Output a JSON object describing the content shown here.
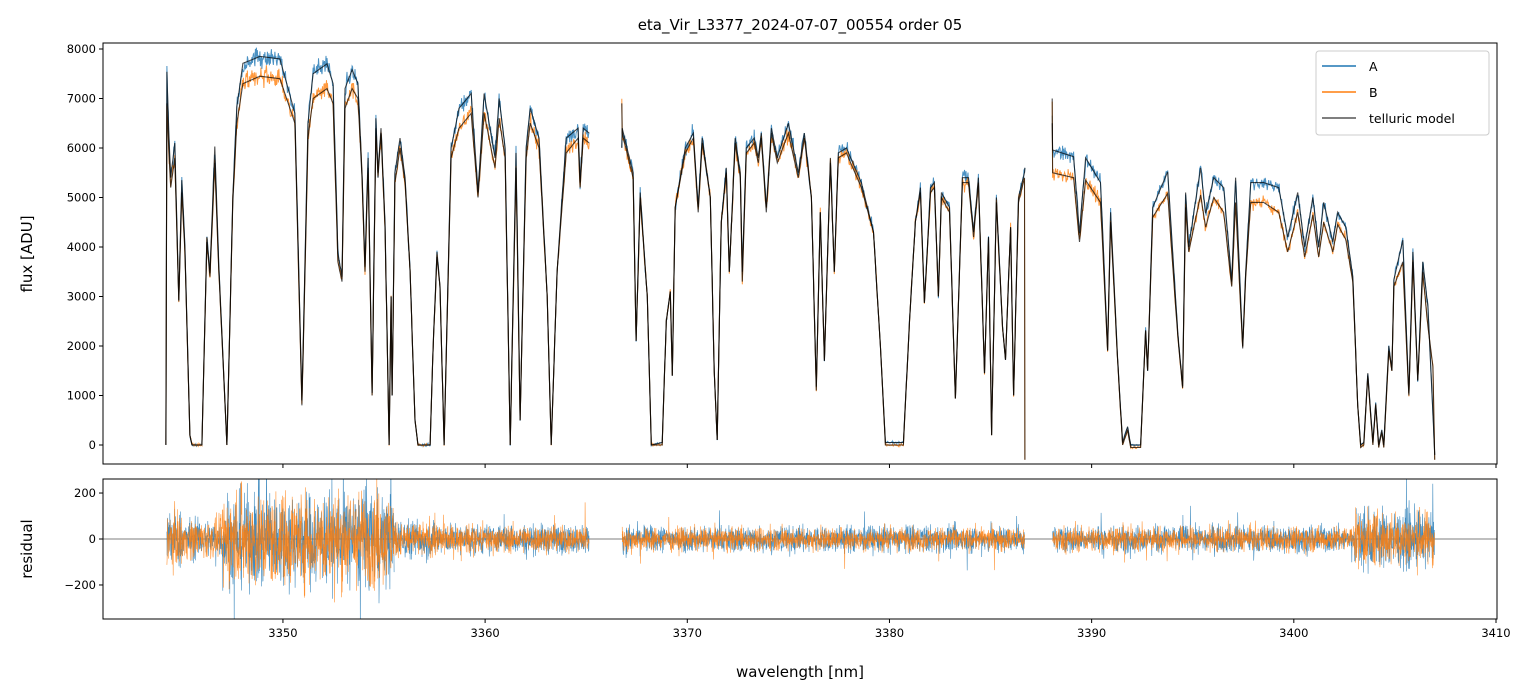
{
  "chart_data": [
    {
      "type": "line",
      "title": "eta_Vir_L3377_2024-07-07_00554  order 05",
      "xlabel": "",
      "ylabel": "flux [ADU]",
      "xlim": [
        3341.1,
        3410.05
      ],
      "ylim": [
        -384,
        8121
      ],
      "grid": false,
      "legend": "top-right",
      "x_ticks": [
        3350,
        3360,
        3370,
        3380,
        3390,
        3400,
        3410
      ],
      "y_ticks": [
        "0",
        "1000",
        "2000",
        "3000",
        "4000",
        "5000",
        "6000",
        "7000",
        "8000"
      ],
      "series": [
        {
          "name": "A",
          "color": "#1f77b4"
        },
        {
          "name": "B",
          "color": "#ff7f0e"
        },
        {
          "name": "telluric model",
          "color": "#555555"
        }
      ],
      "columns": [
        "wavelength_nm",
        "A",
        "B"
      ],
      "segments": [
        [
          [
            3344.21,
            0,
            0
          ],
          [
            3344.26,
            7540,
            6900
          ],
          [
            3344.35,
            6360,
            6000
          ],
          [
            3344.45,
            5400,
            5200
          ],
          [
            3344.65,
            6100,
            5800
          ],
          [
            3344.85,
            2930,
            2900
          ],
          [
            3345.0,
            5350,
            5100
          ],
          [
            3345.15,
            4000,
            3900
          ],
          [
            3345.4,
            200,
            200
          ],
          [
            3345.5,
            0,
            0
          ],
          [
            3345.99,
            0,
            0
          ],
          [
            3346.24,
            4200,
            4100
          ],
          [
            3346.39,
            3470,
            3400
          ],
          [
            3346.63,
            6030,
            5700
          ],
          [
            3346.83,
            3600,
            3500
          ],
          [
            3347.23,
            0,
            0
          ],
          [
            3347.52,
            5000,
            4900
          ],
          [
            3347.72,
            6830,
            6500
          ],
          [
            3348.02,
            7710,
            7300
          ],
          [
            3348.86,
            7850,
            7450
          ],
          [
            3349.85,
            7800,
            7400
          ],
          [
            3350.59,
            6700,
            6500
          ],
          [
            3350.94,
            900,
            800
          ],
          [
            3351.24,
            6500,
            6200
          ],
          [
            3351.49,
            7500,
            7000
          ],
          [
            3352.18,
            7700,
            7200
          ],
          [
            3352.48,
            7300,
            6900
          ],
          [
            3352.72,
            3870,
            3700
          ],
          [
            3352.92,
            3400,
            3300
          ],
          [
            3353.07,
            7200,
            6800
          ],
          [
            3353.42,
            7580,
            7200
          ],
          [
            3353.71,
            7300,
            7000
          ],
          [
            3353.91,
            5500,
            5400
          ],
          [
            3354.06,
            3600,
            3500
          ],
          [
            3354.21,
            5800,
            5600
          ],
          [
            3354.41,
            1050,
            1000
          ],
          [
            3354.6,
            6600,
            6400
          ],
          [
            3354.7,
            5500,
            5400
          ],
          [
            3354.85,
            6400,
            6300
          ],
          [
            3355.05,
            4500,
            4400
          ],
          [
            3355.25,
            0,
            0
          ],
          [
            3355.35,
            3000,
            3000
          ],
          [
            3355.4,
            1000,
            1000
          ],
          [
            3355.54,
            5500,
            5300
          ],
          [
            3355.79,
            6200,
            6000
          ],
          [
            3356.04,
            5400,
            5300
          ],
          [
            3356.29,
            3500,
            3500
          ],
          [
            3356.53,
            500,
            500
          ],
          [
            3356.68,
            0,
            0
          ],
          [
            3357.28,
            0,
            0
          ],
          [
            3357.43,
            2000,
            2000
          ],
          [
            3357.62,
            3900,
            3800
          ],
          [
            3357.77,
            3200,
            3200
          ],
          [
            3357.97,
            0,
            0
          ],
          [
            3358.32,
            6000,
            5800
          ],
          [
            3358.71,
            6800,
            6400
          ],
          [
            3359.31,
            7100,
            6700
          ],
          [
            3359.65,
            5100,
            5000
          ],
          [
            3359.95,
            7100,
            6700
          ],
          [
            3360.49,
            5800,
            5600
          ],
          [
            3360.69,
            7000,
            6600
          ],
          [
            3360.99,
            6000,
            5800
          ],
          [
            3361.24,
            0,
            0
          ],
          [
            3361.53,
            5900,
            5600
          ],
          [
            3361.73,
            500,
            500
          ],
          [
            3362.03,
            6000,
            5800
          ],
          [
            3362.23,
            6800,
            6500
          ],
          [
            3362.67,
            6200,
            6000
          ],
          [
            3363.07,
            3000,
            3000
          ],
          [
            3363.27,
            0,
            0
          ],
          [
            3363.56,
            3500,
            3500
          ],
          [
            3364.01,
            6200,
            5900
          ],
          [
            3364.6,
            6400,
            6200
          ],
          [
            3364.7,
            5300,
            5200
          ],
          [
            3364.85,
            6400,
            6200
          ],
          [
            3365.15,
            6300,
            6100
          ]
        ],
        [
          [
            3366.76,
            6000,
            6900
          ],
          [
            3366.78,
            6400,
            6300
          ],
          [
            3367.32,
            5500,
            5400
          ],
          [
            3367.47,
            2100,
            2100
          ],
          [
            3367.67,
            5100,
            5000
          ],
          [
            3368.02,
            3000,
            3000
          ],
          [
            3368.22,
            0,
            0
          ],
          [
            3368.76,
            50,
            0
          ],
          [
            3368.96,
            2500,
            2500
          ],
          [
            3369.16,
            3100,
            3100
          ],
          [
            3369.26,
            1400,
            1400
          ],
          [
            3369.4,
            4800,
            4800
          ],
          [
            3369.9,
            6000,
            5900
          ],
          [
            3370.3,
            6300,
            6200
          ],
          [
            3370.54,
            4800,
            4700
          ],
          [
            3370.74,
            6200,
            6100
          ],
          [
            3371.14,
            5000,
            5000
          ],
          [
            3371.33,
            1500,
            1500
          ],
          [
            3371.48,
            100,
            100
          ],
          [
            3371.68,
            4500,
            4500
          ],
          [
            3371.93,
            5600,
            5500
          ],
          [
            3372.08,
            3500,
            3500
          ],
          [
            3372.37,
            6200,
            6100
          ],
          [
            3372.62,
            5500,
            5400
          ],
          [
            3372.72,
            3500,
            3300
          ],
          [
            3372.92,
            6000,
            5900
          ],
          [
            3373.31,
            6200,
            6100
          ],
          [
            3373.51,
            5800,
            5700
          ],
          [
            3373.66,
            6300,
            6200
          ],
          [
            3373.91,
            4800,
            4700
          ],
          [
            3374.16,
            6400,
            6300
          ],
          [
            3374.45,
            5800,
            5700
          ],
          [
            3375.0,
            6500,
            6300
          ],
          [
            3375.49,
            5500,
            5400
          ],
          [
            3375.79,
            6300,
            6200
          ],
          [
            3376.14,
            5000,
            5000
          ],
          [
            3376.38,
            1180,
            1100
          ],
          [
            3376.58,
            4700,
            4700
          ],
          [
            3376.78,
            1700,
            1700
          ],
          [
            3377.08,
            5800,
            5700
          ],
          [
            3377.27,
            3500,
            3500
          ],
          [
            3377.47,
            5900,
            5800
          ],
          [
            3377.87,
            6000,
            5900
          ],
          [
            3378.61,
            5300,
            5200
          ],
          [
            3379.21,
            4300,
            4300
          ],
          [
            3379.55,
            2000,
            2000
          ],
          [
            3379.8,
            50,
            0
          ],
          [
            3380.69,
            50,
            0
          ],
          [
            3380.99,
            2500,
            2500
          ],
          [
            3381.28,
            4500,
            4500
          ],
          [
            3381.53,
            5200,
            5100
          ],
          [
            3381.73,
            2870,
            2870
          ],
          [
            3382.03,
            5200,
            5100
          ],
          [
            3382.22,
            5300,
            5200
          ],
          [
            3382.42,
            3000,
            3000
          ],
          [
            3382.57,
            5100,
            5000
          ],
          [
            3382.97,
            4800,
            4700
          ],
          [
            3383.26,
            940,
            940
          ],
          [
            3383.61,
            5400,
            5300
          ],
          [
            3383.91,
            5400,
            5300
          ],
          [
            3384.16,
            4300,
            4200
          ],
          [
            3384.4,
            5400,
            5300
          ],
          [
            3384.7,
            1450,
            1450
          ],
          [
            3384.9,
            4200,
            4200
          ],
          [
            3385.05,
            200,
            200
          ],
          [
            3385.29,
            5000,
            4900
          ],
          [
            3385.59,
            2390,
            2390
          ],
          [
            3385.74,
            1720,
            1720
          ],
          [
            3385.99,
            4400,
            4400
          ],
          [
            3386.14,
            1000,
            1000
          ],
          [
            3386.38,
            5000,
            4900
          ],
          [
            3386.68,
            5500,
            5400
          ],
          [
            3386.7,
            5600,
            -300
          ]
        ],
        [
          [
            3388.05,
            6500,
            7000
          ],
          [
            3388.07,
            5960,
            5500
          ],
          [
            3389.11,
            5825,
            5400
          ],
          [
            3389.4,
            4276,
            4100
          ],
          [
            3389.7,
            5800,
            5350
          ],
          [
            3390.44,
            5300,
            4900
          ],
          [
            3390.79,
            1920,
            1900
          ],
          [
            3390.94,
            4700,
            4500
          ],
          [
            3391.28,
            1785,
            1750
          ],
          [
            3391.53,
            50,
            0
          ],
          [
            3391.78,
            370,
            300
          ],
          [
            3391.93,
            0,
            -50
          ],
          [
            3392.42,
            0,
            -50
          ],
          [
            3392.67,
            2320,
            2300
          ],
          [
            3392.77,
            1500,
            1500
          ],
          [
            3393.02,
            4800,
            4600
          ],
          [
            3393.76,
            5520,
            5080
          ],
          [
            3394.26,
            2260,
            2200
          ],
          [
            3394.5,
            1180,
            1150
          ],
          [
            3394.65,
            5100,
            4800
          ],
          [
            3394.8,
            4000,
            3900
          ],
          [
            3395.39,
            5600,
            5050
          ],
          [
            3395.64,
            4680,
            4400
          ],
          [
            3396.04,
            5400,
            5000
          ],
          [
            3396.53,
            5200,
            4700
          ],
          [
            3396.93,
            3300,
            3200
          ],
          [
            3397.12,
            5400,
            4900
          ],
          [
            3397.47,
            1990,
            1950
          ],
          [
            3397.62,
            3500,
            3400
          ],
          [
            3397.87,
            5300,
            4900
          ],
          [
            3398.51,
            5300,
            4900
          ],
          [
            3399.25,
            5200,
            4700
          ],
          [
            3399.7,
            4200,
            3900
          ],
          [
            3400.19,
            5100,
            4700
          ],
          [
            3400.54,
            4000,
            3800
          ],
          [
            3400.94,
            5000,
            4650
          ],
          [
            3401.23,
            4000,
            3800
          ],
          [
            3401.48,
            4900,
            4500
          ],
          [
            3401.93,
            4100,
            3900
          ],
          [
            3402.17,
            4700,
            4450
          ],
          [
            3402.57,
            4400,
            4150
          ],
          [
            3402.92,
            3400,
            3300
          ],
          [
            3403.16,
            800,
            800
          ],
          [
            3403.31,
            0,
            -50
          ],
          [
            3403.46,
            50,
            0
          ],
          [
            3403.66,
            1450,
            1400
          ],
          [
            3403.91,
            50,
            0
          ],
          [
            3404.05,
            840,
            800
          ],
          [
            3404.2,
            0,
            -50
          ],
          [
            3404.35,
            300,
            250
          ],
          [
            3404.45,
            0,
            -50
          ],
          [
            3404.7,
            2000,
            1900
          ],
          [
            3404.85,
            1500,
            1500
          ],
          [
            3404.95,
            3340,
            3200
          ],
          [
            3405.39,
            4140,
            3700
          ],
          [
            3405.69,
            1040,
            1000
          ],
          [
            3405.89,
            3900,
            3700
          ],
          [
            3406.13,
            1300,
            1300
          ],
          [
            3406.38,
            3700,
            3500
          ],
          [
            3406.63,
            2800,
            2400
          ],
          [
            3406.88,
            640,
            1580
          ],
          [
            3406.97,
            -200,
            -300
          ]
        ]
      ]
    },
    {
      "type": "line",
      "xlabel": "wavelength [nm]",
      "ylabel": "residual",
      "xlim": [
        3341.1,
        3410.05
      ],
      "ylim": [
        -348,
        261
      ],
      "grid": false,
      "zero_line": true,
      "x_ticks": [
        "3350",
        "3360",
        "3370",
        "3380",
        "3390",
        "3400",
        "3410"
      ],
      "y_ticks": [
        "−200",
        "0",
        "200"
      ],
      "y_tick_values": [
        -200,
        0,
        200
      ],
      "series": [
        {
          "name": "A",
          "color": "#1f77b4"
        },
        {
          "name": "B",
          "color": "#ff7f0e"
        }
      ],
      "envelope_columns": [
        "start_nm",
        "end_nm",
        "A_amplitude",
        "B_amplitude"
      ],
      "residual_envelope": [
        [
          3344.26,
          3345.0,
          160,
          150
        ],
        [
          3345.0,
          3347.0,
          110,
          110
        ],
        [
          3347.0,
          3355.5,
          260,
          260
        ],
        [
          3355.5,
          3358.0,
          110,
          100
        ],
        [
          3358.0,
          3365.15,
          80,
          75
        ],
        [
          3366.78,
          3386.7,
          75,
          65
        ],
        [
          3388.07,
          3403.0,
          75,
          70
        ],
        [
          3403.0,
          3406.97,
          160,
          150
        ]
      ]
    }
  ]
}
